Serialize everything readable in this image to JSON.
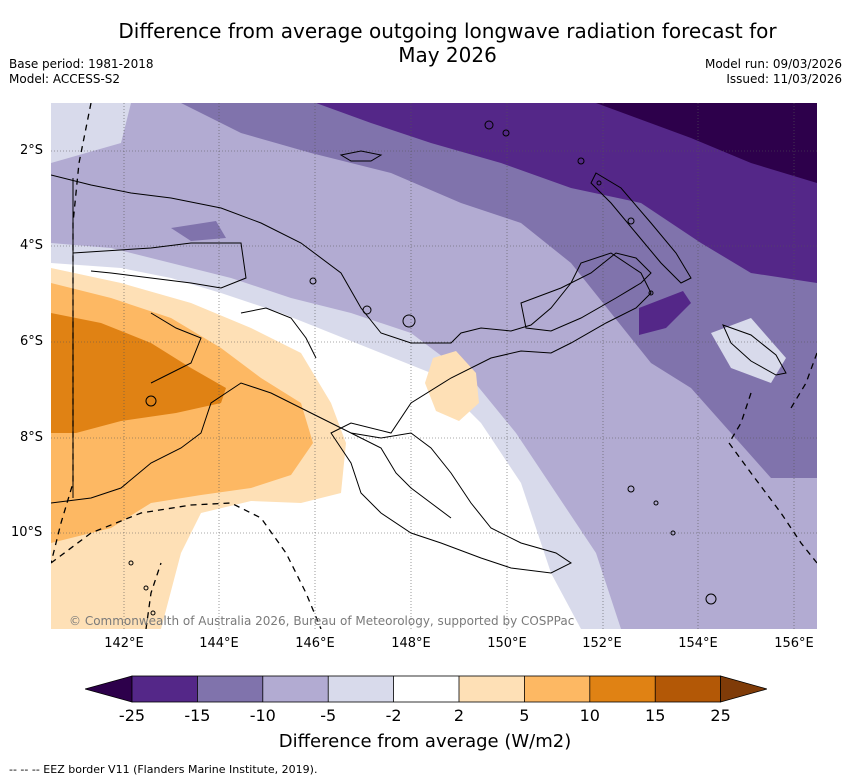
{
  "header": {
    "title_line1": "Difference from average outgoing longwave radiation forecast for",
    "title_line2": "May 2026",
    "base_period": "Base period: 1981-2018",
    "model": "Model: ACCESS-S2",
    "model_run": "Model run: 09/03/2026",
    "issued": "Issued: 11/03/2026"
  },
  "map": {
    "region": "Papua New Guinea",
    "lat_labels": [
      "2°S",
      "4°S",
      "6°S",
      "8°S",
      "10°S"
    ],
    "lon_labels": [
      "142°E",
      "144°E",
      "146°E",
      "148°E",
      "150°E",
      "152°E",
      "154°E",
      "156°E"
    ],
    "copyright": "© Commonwealth of Australia 2026, Bureau of Meteorology, supported by COSPPac"
  },
  "legend": {
    "ticks": [
      "-25",
      "-15",
      "-10",
      "-5",
      "-2",
      "2",
      "5",
      "10",
      "15",
      "25"
    ],
    "colors": [
      "#2d004b",
      "#542788",
      "#8073ac",
      "#b2abd2",
      "#d8daeb",
      "#ffffff",
      "#fee0b6",
      "#fdb863",
      "#e08214",
      "#b35806",
      "#7f3b08"
    ],
    "title": "Difference from average (W/m2)"
  },
  "footnote": "--  --  -- EEZ border V11 (Flanders Marine Institute, 2019)."
}
